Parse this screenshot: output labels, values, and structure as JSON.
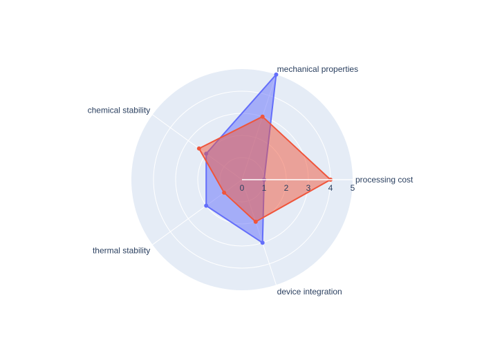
{
  "chart_data": {
    "type": "radar",
    "title": "",
    "categories": [
      "processing cost",
      "mechanical properties",
      "chemical stability",
      "thermal stability",
      "device integration"
    ],
    "radial_axis": {
      "range": [
        0,
        5
      ],
      "ticks": [
        "0",
        "1",
        "2",
        "3",
        "4",
        "5"
      ]
    },
    "angular_axis": {
      "rotation_deg": 0,
      "direction": "counterclockwise"
    },
    "grid": true,
    "legend": "none",
    "series": [
      {
        "values": [
          1,
          5,
          2,
          2,
          3
        ],
        "color": "#636efa"
      },
      {
        "values": [
          4,
          3,
          2.4,
          1,
          2
        ],
        "color": "#ef553b"
      }
    ],
    "background_color": "#e5ecf6"
  }
}
